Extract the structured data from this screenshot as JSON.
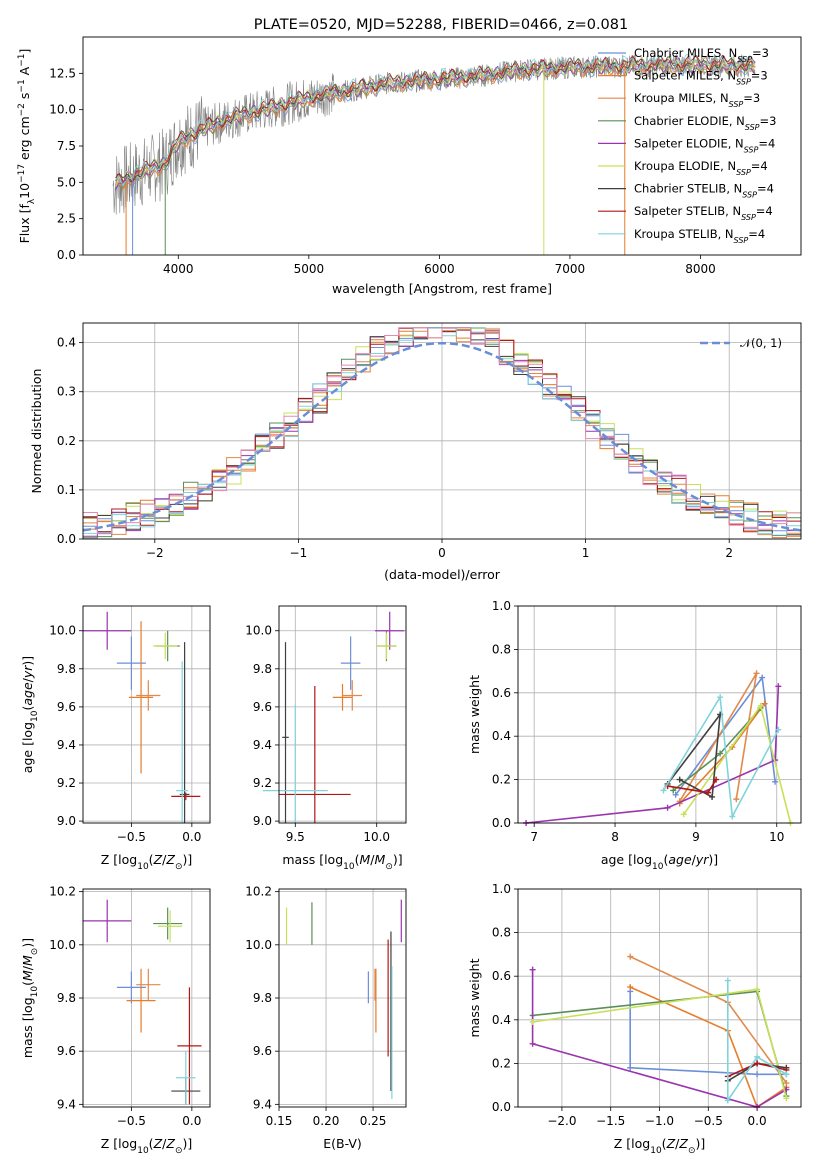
{
  "figure_title": "PLATE=0520, MJD=52288, FIBERID=0466, z=0.081",
  "colors": {
    "Chabrier MILES": "#6c8fd9",
    "Salpeter MILES": "#e87c29",
    "Kroupa MILES": "#e08a4c",
    "Chabrier ELODIE": "#5a8f5a",
    "Salpeter ELODIE": "#9a34b0",
    "Kroupa ELODIE": "#c8e05a",
    "Chabrier STELIB": "#404040",
    "Salpeter STELIB": "#b01818",
    "Kroupa STELIB": "#7fd4dc",
    "pink": "#e48ab4",
    "data": "#808080",
    "gauss": "#6a8ed6"
  },
  "chart_data": [
    {
      "type": "line",
      "id": "spectrum",
      "xlabel": "wavelength [Angstrom, rest frame]",
      "ylabel": "Flux [f_λ 10^-17 erg cm^-2 s^-1 A^-1]",
      "xlim": [
        3270,
        8770
      ],
      "ylim": [
        0,
        15
      ],
      "xticks": [
        4000,
        5000,
        6000,
        7000,
        8000
      ],
      "yticks": [
        0.0,
        2.5,
        5.0,
        7.5,
        10.0,
        12.5
      ],
      "legend": "top-right",
      "legend_entries": [
        {
          "label": "Chabrier MILES, N_SSP=3",
          "color": "#6c8fd9"
        },
        {
          "label": "Salpeter MILES, N_SSP=3",
          "color": "#e87c29"
        },
        {
          "label": "Kroupa MILES, N_SSP=3",
          "color": "#e08a4c"
        },
        {
          "label": "Chabrier ELODIE, N_SSP=3",
          "color": "#5a8f5a"
        },
        {
          "label": "Salpeter ELODIE, N_SSP=4",
          "color": "#9a34b0"
        },
        {
          "label": "Kroupa ELODIE, N_SSP=4",
          "color": "#c8e05a"
        },
        {
          "label": "Chabrier STELIB, N_SSP=4",
          "color": "#404040"
        },
        {
          "label": "Salpeter STELIB, N_SSP=4",
          "color": "#b01818"
        },
        {
          "label": "Kroupa STELIB, N_SSP=4",
          "color": "#7fd4dc"
        }
      ],
      "continuum": [
        [
          3500,
          4.8
        ],
        [
          3700,
          5.6
        ],
        [
          3900,
          6.3
        ],
        [
          4000,
          7.8
        ],
        [
          4200,
          8.7
        ],
        [
          4400,
          9.4
        ],
        [
          4700,
          10.1
        ],
        [
          5000,
          10.8
        ],
        [
          5300,
          11.3
        ],
        [
          5600,
          11.8
        ],
        [
          6000,
          12.1
        ],
        [
          6300,
          12.3
        ],
        [
          6600,
          12.7
        ],
        [
          7000,
          12.9
        ],
        [
          7400,
          13.0
        ],
        [
          8000,
          13.1
        ],
        [
          8400,
          13.0
        ]
      ]
    },
    {
      "type": "histogram",
      "id": "residuals",
      "xlabel": "(data-model)/error",
      "ylabel": "Normed distribution",
      "xlim": [
        -2.5,
        2.5
      ],
      "ylim": [
        0,
        0.44
      ],
      "xticks": [
        -2,
        -1,
        0,
        1,
        2
      ],
      "yticks": [
        0.0,
        0.1,
        0.2,
        0.3,
        0.4
      ],
      "grid": true,
      "legend": "top-right",
      "legend_entries": [
        {
          "label": "𝒩(0, 1)",
          "color": "#6a8ed6",
          "style": "dashed"
        }
      ],
      "bin_width": 0.1
    },
    {
      "type": "scatter",
      "id": "age_vs_Z",
      "xlabel": "Z [log10(Z/Z⊙)]",
      "ylabel": "age [log10(age/yr)]",
      "xlim": [
        -0.9,
        0.15
      ],
      "ylim": [
        8.99,
        10.13
      ],
      "xticks": [
        -0.5,
        0.0
      ],
      "xticklabels": [
        "−0.5",
        "0.0"
      ],
      "yticks": [
        9.0,
        9.2,
        9.4,
        9.6,
        9.8,
        10.0
      ],
      "grid": true,
      "points": [
        {
          "model": "Chabrier MILES",
          "x": -0.5,
          "xerr": 0.12,
          "y": 9.83,
          "yerr": 0.14
        },
        {
          "model": "Salpeter MILES",
          "x": -0.42,
          "xerr": 0.1,
          "y": 9.65,
          "yerr": 0.4
        },
        {
          "model": "Kroupa MILES",
          "x": -0.36,
          "xerr": 0.1,
          "y": 9.66,
          "yerr": 0.08
        },
        {
          "model": "Chabrier ELODIE",
          "x": -0.2,
          "xerr": 0.1,
          "y": 9.92,
          "yerr": 0.08
        },
        {
          "model": "Salpeter ELODIE",
          "x": -0.7,
          "xerr": 0.2,
          "y": 10.0,
          "yerr": 0.1
        },
        {
          "model": "Kroupa ELODIE",
          "x": -0.22,
          "xerr": 0.1,
          "y": 9.92,
          "yerr": 0.07
        },
        {
          "model": "Chabrier STELIB",
          "x": -0.06,
          "xerr": 0.04,
          "y": 9.14,
          "yerr": 0.8
        },
        {
          "model": "Salpeter STELIB",
          "x": -0.05,
          "xerr": 0.12,
          "y": 9.13,
          "yerr": 0.02
        },
        {
          "model": "Kroupa STELIB",
          "x": -0.08,
          "xerr": 0.05,
          "y": 9.16,
          "yerr": 0.68
        }
      ]
    },
    {
      "type": "scatter",
      "id": "age_vs_mass",
      "xlabel": "mass [log10(M/M⊙)]",
      "xlim": [
        9.4,
        10.18
      ],
      "ylim": [
        8.99,
        10.13
      ],
      "xticks": [
        9.5,
        10.0
      ],
      "yticks": [
        9.0,
        9.2,
        9.4,
        9.6,
        9.8,
        10.0
      ],
      "grid": true,
      "points": [
        {
          "model": "Chabrier MILES",
          "x": 9.84,
          "xerr": 0.06,
          "y": 9.83,
          "yerr": 0.14
        },
        {
          "model": "Salpeter MILES",
          "x": 9.79,
          "xerr": 0.06,
          "y": 9.65,
          "yerr": 0.07
        },
        {
          "model": "Kroupa MILES",
          "x": 9.85,
          "xerr": 0.06,
          "y": 9.66,
          "yerr": 0.08
        },
        {
          "model": "Chabrier ELODIE",
          "x": 10.06,
          "xerr": 0.06,
          "y": 9.92,
          "yerr": 0.08
        },
        {
          "model": "Salpeter ELODIE",
          "x": 10.08,
          "xerr": 0.09,
          "y": 10.0,
          "yerr": 0.1
        },
        {
          "model": "Kroupa ELODIE",
          "x": 10.06,
          "xerr": 0.06,
          "y": 9.92,
          "yerr": 0.07
        },
        {
          "model": "Chabrier STELIB",
          "x": 9.44,
          "xerr": 0.02,
          "y": 9.44,
          "yerr": 0.5
        },
        {
          "model": "Salpeter STELIB",
          "x": 9.62,
          "xerr": 0.22,
          "y": 9.14,
          "yerr": 0.57
        },
        {
          "model": "Kroupa STELIB",
          "x": 9.5,
          "xerr": 0.2,
          "y": 9.16,
          "yerr": 0.45
        }
      ]
    },
    {
      "type": "line",
      "id": "weight_vs_age",
      "xlabel": "age [log10(age/yr)]",
      "ylabel": "mass weight",
      "xlim": [
        6.8,
        10.3
      ],
      "ylim": [
        0,
        1
      ],
      "xticks": [
        7,
        8,
        9,
        10
      ],
      "yticks": [
        0.0,
        0.2,
        0.4,
        0.6,
        0.8,
        1.0
      ],
      "grid": true,
      "series": [
        {
          "model": "Chabrier MILES",
          "x": [
            8.75,
            9.82,
            9.98
          ],
          "y": [
            0.13,
            0.67,
            0.19
          ]
        },
        {
          "model": "Salpeter MILES",
          "x": [
            8.8,
            9.45,
            9.85
          ],
          "y": [
            0.09,
            0.35,
            0.55
          ]
        },
        {
          "model": "Kroupa MILES",
          "x": [
            8.8,
            9.75,
            9.5
          ],
          "y": [
            0.1,
            0.69,
            0.11
          ]
        },
        {
          "model": "Chabrier ELODIE",
          "x": [
            8.72,
            9.3,
            9.8
          ],
          "y": [
            0.15,
            0.32,
            0.53
          ]
        },
        {
          "model": "Salpeter ELODIE",
          "x": [
            6.9,
            8.65,
            9.98,
            10.02
          ],
          "y": [
            0.0,
            0.07,
            0.29,
            0.63
          ]
        },
        {
          "model": "Kroupa ELODIE",
          "x": [
            8.85,
            9.8,
            10.17
          ],
          "y": [
            0.04,
            0.54,
            0.0
          ]
        },
        {
          "model": "Chabrier STELIB",
          "x": [
            8.65,
            9.3,
            9.2,
            8.8
          ],
          "y": [
            0.18,
            0.5,
            0.12,
            0.2
          ]
        },
        {
          "model": "Salpeter STELIB",
          "x": [
            8.65,
            9.15,
            9.25
          ],
          "y": [
            0.17,
            0.14,
            0.2
          ]
        },
        {
          "model": "Kroupa STELIB",
          "x": [
            8.6,
            9.3,
            9.45,
            10.02
          ],
          "y": [
            0.15,
            0.58,
            0.03,
            0.43
          ]
        }
      ]
    },
    {
      "type": "scatter",
      "id": "mass_vs_Z",
      "xlabel": "Z [log10(Z/Z⊙)]",
      "ylabel": "mass [log10(M/M⊙)]",
      "xlim": [
        -0.9,
        0.15
      ],
      "ylim": [
        9.39,
        10.21
      ],
      "xticks": [
        -0.5,
        0.0
      ],
      "xticklabels": [
        "−0.5",
        "0.0"
      ],
      "yticks": [
        9.4,
        9.6,
        9.8,
        10.0,
        10.2
      ],
      "grid": true,
      "points": [
        {
          "model": "Chabrier MILES",
          "x": -0.5,
          "xerr": 0.12,
          "y": 9.84,
          "yerr": 0.06
        },
        {
          "model": "Salpeter MILES",
          "x": -0.42,
          "xerr": 0.12,
          "y": 9.79,
          "yerr": 0.12
        },
        {
          "model": "Kroupa MILES",
          "x": -0.36,
          "xerr": 0.1,
          "y": 9.85,
          "yerr": 0.06
        },
        {
          "model": "Chabrier ELODIE",
          "x": -0.2,
          "xerr": 0.12,
          "y": 10.08,
          "yerr": 0.06
        },
        {
          "model": "Salpeter ELODIE",
          "x": -0.7,
          "xerr": 0.2,
          "y": 10.09,
          "yerr": 0.08
        },
        {
          "model": "Kroupa ELODIE",
          "x": -0.18,
          "xerr": 0.1,
          "y": 10.07,
          "yerr": 0.06
        },
        {
          "model": "Chabrier STELIB",
          "x": -0.05,
          "xerr": 0.12,
          "y": 9.45,
          "yerr": 0.05
        },
        {
          "model": "Salpeter STELIB",
          "x": -0.02,
          "xerr": 0.1,
          "y": 9.62,
          "yerr": 0.22
        },
        {
          "model": "Kroupa STELIB",
          "x": -0.05,
          "xerr": 0.08,
          "y": 9.5,
          "yerr": 0.1
        }
      ]
    },
    {
      "type": "scatter",
      "id": "mass_vs_EBV",
      "xlabel": "E(B-V)",
      "xlim": [
        0.15,
        0.285
      ],
      "ylim": [
        9.39,
        10.21
      ],
      "xticks": [
        0.15,
        0.2,
        0.25
      ],
      "xticklabels": [
        "0.15",
        "0.20",
        "0.25"
      ],
      "yticks": [
        9.4,
        9.6,
        9.8,
        10.0,
        10.2
      ],
      "grid": true,
      "points": [
        {
          "model": "Chabrier MILES",
          "x": 0.245,
          "xerr": 0,
          "y": 9.84,
          "yerr": 0.06
        },
        {
          "model": "Salpeter MILES",
          "x": 0.253,
          "xerr": 0,
          "y": 9.79,
          "yerr": 0.12
        },
        {
          "model": "Kroupa MILES",
          "x": 0.252,
          "xerr": 0,
          "y": 9.85,
          "yerr": 0.06
        },
        {
          "model": "Chabrier ELODIE",
          "x": 0.185,
          "xerr": 0,
          "y": 10.08,
          "yerr": 0.08
        },
        {
          "model": "Salpeter ELODIE",
          "x": 0.28,
          "xerr": 0,
          "y": 10.09,
          "yerr": 0.08
        },
        {
          "model": "Kroupa ELODIE",
          "x": 0.158,
          "xerr": 0,
          "y": 10.07,
          "yerr": 0.07
        },
        {
          "model": "Chabrier STELIB",
          "x": 0.269,
          "xerr": 0,
          "y": 9.75,
          "yerr": 0.3
        },
        {
          "model": "Salpeter STELIB",
          "x": 0.266,
          "xerr": 0,
          "y": 9.8,
          "yerr": 0.22
        },
        {
          "model": "Kroupa STELIB",
          "x": 0.27,
          "xerr": 0,
          "y": 9.67,
          "yerr": 0.25
        }
      ]
    },
    {
      "type": "line",
      "id": "weight_vs_Z",
      "xlabel": "Z [log10(Z/Z⊙)]",
      "ylabel": "mass weight",
      "xlim": [
        -2.45,
        0.45
      ],
      "ylim": [
        0,
        1
      ],
      "xticks": [
        -2.0,
        -1.5,
        -1.0,
        -0.5,
        0.0
      ],
      "xticklabels": [
        "−2.0",
        "−1.5",
        "−1.0",
        "−0.5",
        "0.0"
      ],
      "yticks": [
        0.0,
        0.2,
        0.4,
        0.6,
        0.8,
        1.0
      ],
      "grid": true,
      "series": [
        {
          "model": "Chabrier MILES",
          "x": [
            -1.3,
            -1.3,
            0.0,
            0.3
          ],
          "y": [
            0.53,
            0.18,
            0.15,
            0.15
          ]
        },
        {
          "model": "Salpeter MILES",
          "x": [
            -1.3,
            -0.3,
            0.0,
            0.3
          ],
          "y": [
            0.55,
            0.35,
            0.0,
            0.09
          ]
        },
        {
          "model": "Kroupa MILES",
          "x": [
            -1.3,
            -0.3,
            0.3
          ],
          "y": [
            0.69,
            0.48,
            0.11
          ]
        },
        {
          "model": "Chabrier ELODIE",
          "x": [
            -2.3,
            0.0,
            0.3
          ],
          "y": [
            0.42,
            0.53,
            0.05
          ]
        },
        {
          "model": "Salpeter ELODIE",
          "x": [
            -2.3,
            -2.3,
            0.0,
            0.3
          ],
          "y": [
            0.63,
            0.29,
            0.0,
            0.08
          ]
        },
        {
          "model": "Kroupa ELODIE",
          "x": [
            -2.3,
            0.0,
            0.3
          ],
          "y": [
            0.39,
            0.54,
            0.04
          ]
        },
        {
          "model": "Chabrier STELIB",
          "x": [
            -0.3,
            0.0,
            0.3
          ],
          "y": [
            0.12,
            0.2,
            0.18
          ]
        },
        {
          "model": "Salpeter STELIB",
          "x": [
            -0.3,
            0.0,
            0.3
          ],
          "y": [
            0.14,
            0.2,
            0.17
          ]
        },
        {
          "model": "Kroupa STELIB",
          "x": [
            -0.3,
            -0.3,
            0.0,
            0.3
          ],
          "y": [
            0.58,
            0.03,
            0.23,
            0.15
          ]
        }
      ]
    }
  ]
}
